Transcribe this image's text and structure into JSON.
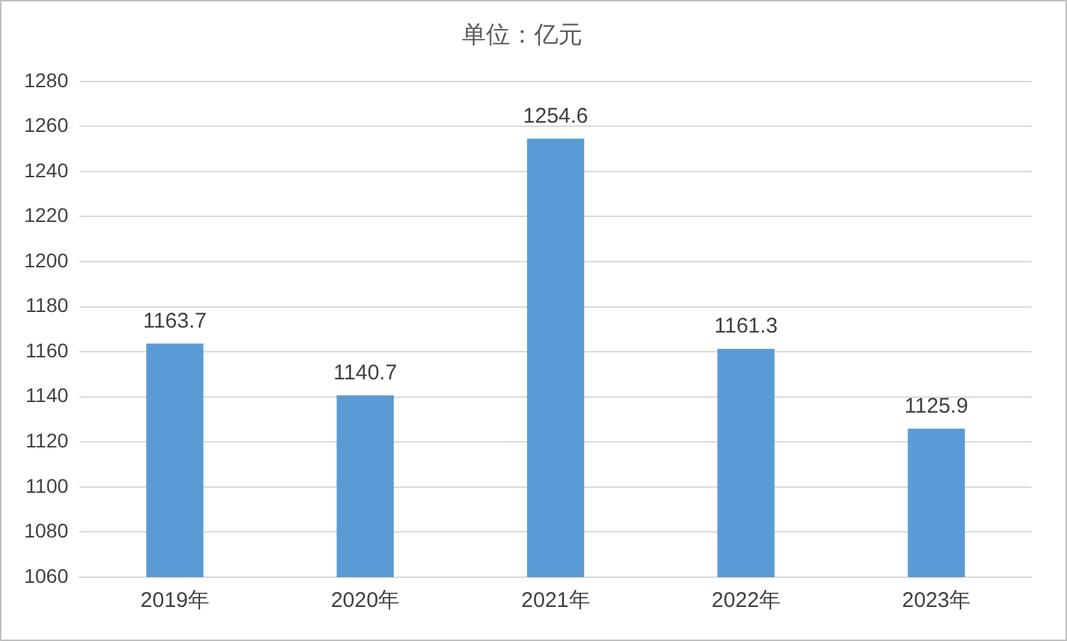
{
  "chart_data": {
    "type": "bar",
    "title": "单位：亿元",
    "categories": [
      "2019年",
      "2020年",
      "2021年",
      "2022年",
      "2023年"
    ],
    "values": [
      1163.7,
      1140.7,
      1254.6,
      1161.3,
      1125.9
    ],
    "color": "#5b9bd5",
    "ylim": [
      1060,
      1280
    ],
    "yticks": [
      1060,
      1080,
      1100,
      1120,
      1140,
      1160,
      1180,
      1200,
      1220,
      1240,
      1260,
      1280
    ],
    "grid": "y",
    "data_labels": true
  }
}
